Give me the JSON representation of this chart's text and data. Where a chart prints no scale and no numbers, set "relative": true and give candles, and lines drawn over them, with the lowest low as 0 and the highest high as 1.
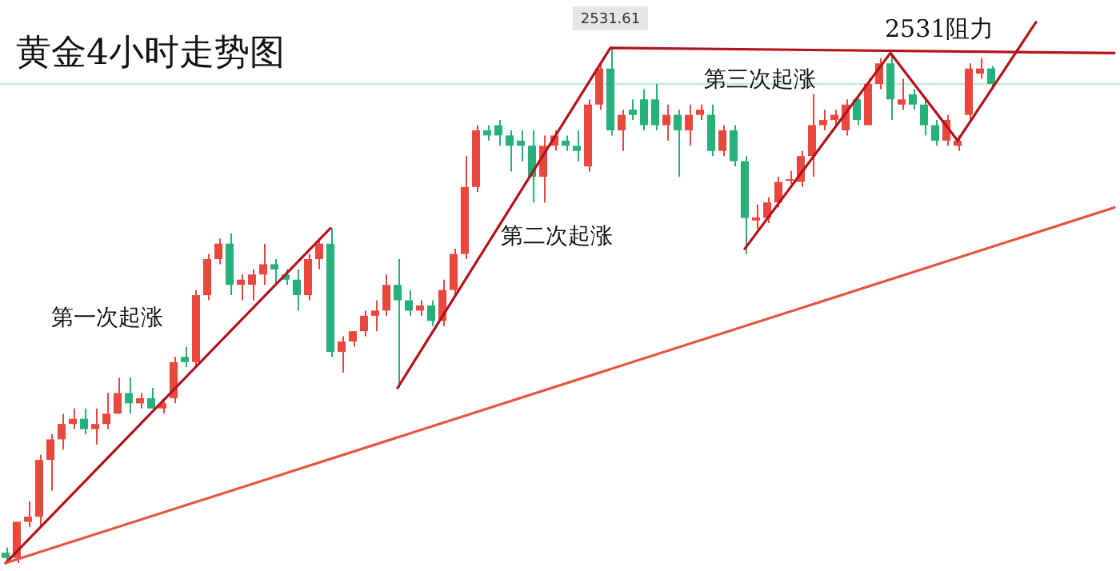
{
  "chart_data": {
    "type": "candlestick",
    "title": "黄金4小时走势图",
    "relative": true,
    "categories": [
      null,
      null,
      null,
      null,
      null,
      null,
      null,
      null,
      null,
      null,
      null,
      null,
      null,
      null,
      null,
      null,
      null,
      null,
      null,
      null,
      null,
      null,
      null,
      null,
      null,
      null,
      null,
      null,
      null,
      null,
      null,
      null,
      null,
      null,
      null,
      null,
      null,
      null,
      null,
      null,
      null,
      null,
      null,
      null,
      null,
      null,
      null,
      null,
      null,
      null,
      null,
      null,
      null,
      null,
      null,
      null,
      null,
      null,
      null,
      null,
      null,
      null,
      null,
      null,
      null,
      null,
      null,
      null,
      null,
      null,
      null,
      null,
      null,
      null,
      null,
      null,
      null,
      null,
      null,
      null,
      null,
      null,
      null,
      null,
      null,
      null,
      null,
      null,
      null,
      null,
      null,
      null,
      null,
      null,
      null,
      null,
      null,
      null,
      null,
      null
    ],
    "ohlc": [
      [
        0.02,
        0.03,
        0,
        0.01
      ],
      [
        0.01,
        0.08,
        0,
        0.08
      ],
      [
        0.08,
        0.12,
        0.07,
        0.09
      ],
      [
        0.09,
        0.21,
        0.07,
        0.2
      ],
      [
        0.2,
        0.25,
        0.14,
        0.24
      ],
      [
        0.24,
        0.29,
        0.22,
        0.27
      ],
      [
        0.27,
        0.3,
        0.26,
        0.28
      ],
      [
        0.28,
        0.3,
        0.25,
        0.26
      ],
      [
        0.26,
        0.3,
        0.23,
        0.27
      ],
      [
        0.27,
        0.33,
        0.26,
        0.29
      ],
      [
        0.29,
        0.36,
        0.29,
        0.33
      ],
      [
        0.33,
        0.36,
        0.29,
        0.31
      ],
      [
        0.31,
        0.33,
        0.3,
        0.32
      ],
      [
        0.32,
        0.34,
        0.3,
        0.3
      ],
      [
        0.3,
        0.32,
        0.29,
        0.31
      ],
      [
        0.32,
        0.4,
        0.31,
        0.39
      ],
      [
        0.4,
        0.42,
        0.38,
        0.39
      ],
      [
        0.39,
        0.53,
        0.38,
        0.52
      ],
      [
        0.52,
        0.6,
        0.51,
        0.59
      ],
      [
        0.59,
        0.63,
        0.58,
        0.62
      ],
      [
        0.62,
        0.64,
        0.52,
        0.54
      ],
      [
        0.54,
        0.56,
        0.51,
        0.55
      ],
      [
        0.54,
        0.57,
        0.51,
        0.56
      ],
      [
        0.56,
        0.62,
        0.54,
        0.58
      ],
      [
        0.58,
        0.59,
        0.54,
        0.57
      ],
      [
        0.56,
        0.57,
        0.54,
        0.55
      ],
      [
        0.55,
        0.57,
        0.49,
        0.52
      ],
      [
        0.52,
        0.6,
        0.51,
        0.59
      ],
      [
        0.59,
        0.63,
        0.57,
        0.62
      ],
      [
        0.62,
        0.65,
        0.4,
        0.41
      ],
      [
        0.41,
        0.44,
        0.37,
        0.43
      ],
      [
        0.43,
        0.45,
        0.42,
        0.45
      ],
      [
        0.45,
        0.49,
        0.44,
        0.48
      ],
      [
        0.48,
        0.51,
        0.45,
        0.49
      ],
      [
        0.49,
        0.56,
        0.48,
        0.54
      ],
      [
        0.54,
        0.59,
        0.34,
        0.51
      ],
      [
        0.51,
        0.53,
        0.48,
        0.49
      ],
      [
        0.49,
        0.51,
        0.48,
        0.5
      ],
      [
        0.5,
        0.51,
        0.46,
        0.47
      ],
      [
        0.47,
        0.55,
        0.46,
        0.53
      ],
      [
        0.53,
        0.61,
        0.52,
        0.6
      ],
      [
        0.6,
        0.79,
        0.59,
        0.73
      ],
      [
        0.73,
        0.85,
        0.72,
        0.84
      ],
      [
        0.84,
        0.85,
        0.82,
        0.83
      ],
      [
        0.85,
        0.86,
        0.81,
        0.83
      ],
      [
        0.83,
        0.84,
        0.76,
        0.81
      ],
      [
        0.82,
        0.84,
        0.78,
        0.81
      ],
      [
        0.81,
        0.84,
        0.7,
        0.75
      ],
      [
        0.75,
        0.83,
        0.7,
        0.81
      ],
      [
        0.81,
        0.84,
        0.8,
        0.83
      ],
      [
        0.82,
        0.83,
        0.8,
        0.81
      ],
      [
        0.81,
        0.84,
        0.78,
        0.8
      ],
      [
        0.77,
        0.9,
        0.76,
        0.89
      ],
      [
        0.89,
        0.97,
        0.88,
        0.96
      ],
      [
        0.96,
        1,
        0.83,
        0.84
      ],
      [
        0.84,
        0.88,
        0.8,
        0.87
      ],
      [
        0.88,
        0.9,
        0.86,
        0.87
      ],
      [
        0.9,
        0.92,
        0.84,
        0.85
      ],
      [
        0.9,
        0.93,
        0.84,
        0.85
      ],
      [
        0.85,
        0.89,
        0.82,
        0.87
      ],
      [
        0.87,
        0.88,
        0.75,
        0.84
      ],
      [
        0.84,
        0.89,
        0.81,
        0.87
      ],
      [
        0.87,
        0.89,
        0.86,
        0.88
      ],
      [
        0.87,
        0.89,
        0.79,
        0.8
      ],
      [
        0.8,
        0.85,
        0.79,
        0.84
      ],
      [
        0.84,
        0.85,
        0.77,
        0.78
      ],
      [
        0.78,
        0.79,
        0.6,
        0.67
      ],
      [
        0.665,
        0.696,
        0.649,
        0.671
      ],
      [
        0.67,
        0.71,
        0.66,
        0.7
      ],
      [
        0.7,
        0.75,
        0.69,
        0.74
      ],
      [
        0.742,
        0.761,
        0.736,
        0.745
      ],
      [
        0.74,
        0.8,
        0.73,
        0.79
      ],
      [
        0.79,
        0.91,
        0.75,
        0.85
      ],
      [
        0.85,
        0.88,
        0.84,
        0.86
      ],
      [
        0.86,
        0.88,
        0.85,
        0.87
      ],
      [
        0.84,
        0.9,
        0.83,
        0.89
      ],
      [
        0.9,
        0.91,
        0.85,
        0.86
      ],
      [
        0.85,
        0.94,
        0.85,
        0.93
      ],
      [
        0.93,
        0.98,
        0.92,
        0.97
      ],
      [
        0.97,
        0.99,
        0.86,
        0.9
      ],
      [
        0.89,
        0.94,
        0.88,
        0.9
      ],
      [
        0.91,
        0.92,
        0.88,
        0.89
      ],
      [
        0.89,
        0.9,
        0.83,
        0.85
      ],
      [
        0.85,
        0.86,
        0.81,
        0.82
      ],
      [
        0.82,
        0.87,
        0.81,
        0.86
      ],
      [
        0.81,
        0.83,
        0.8,
        0.82
      ],
      [
        0.87,
        0.97,
        0.86,
        0.96
      ],
      [
        0.95,
        0.98,
        0.94,
        0.96
      ],
      [
        0.96,
        0.965,
        0.92,
        0.93
      ],
      null,
      null,
      null,
      null,
      null,
      null,
      null,
      null,
      null,
      null,
      null
    ],
    "colors": [
      "#26b17a",
      "#e9483f",
      "#e9483f",
      "#e9483f",
      "#e9483f",
      "#e9483f",
      "#e9483f",
      "#26b17a",
      "#e9483f",
      "#e9483f",
      "#e9483f",
      "#26b17a",
      "#e9483f",
      "#26b17a",
      "#e9483f",
      "#e9483f",
      "#26b17a",
      "#e9483f",
      "#e9483f",
      "#e9483f",
      "#26b17a",
      "#e9483f",
      "#e9483f",
      "#e9483f",
      "#26b17a",
      "#26b17a",
      "#26b17a",
      "#e9483f",
      "#e9483f",
      "#26b17a",
      "#e9483f",
      "#e9483f",
      "#e9483f",
      "#e9483f",
      "#e9483f",
      "#26b17a",
      "#26b17a",
      "#e9483f",
      "#26b17a",
      "#e9483f",
      "#e9483f",
      "#e9483f",
      "#e9483f",
      "#26b17a",
      "#26b17a",
      "#26b17a",
      "#26b17a",
      "#26b17a",
      "#e9483f",
      "#e9483f",
      "#26b17a",
      "#26b17a",
      "#e9483f",
      "#e9483f",
      "#26b17a",
      "#e9483f",
      "#26b17a",
      "#26b17a",
      "#26b17a",
      "#e9483f",
      "#26b17a",
      "#e9483f",
      "#e9483f",
      "#26b17a",
      "#e9483f",
      "#26b17a",
      "#26b17a",
      "#e9483f",
      "#e9483f",
      "#e9483f",
      "#e9483f",
      "#e9483f",
      "#e9483f",
      "#e9483f",
      "#e9483f",
      "#e9483f",
      "#26b17a",
      "#e9483f",
      "#e9483f",
      "#26b17a",
      "#e9483f",
      "#26b17a",
      "#26b17a",
      "#26b17a",
      "#e9483f",
      "#e9483f",
      "#e9483f",
      "#e9483f",
      "#26b17a",
      null,
      null,
      null,
      null,
      null,
      null,
      null,
      null,
      null,
      null,
      null
    ],
    "series": [
      {
        "type": "line",
        "color": "#e8553f",
        "values": [
          0,
          null,
          null,
          null,
          null,
          null,
          null,
          null,
          null,
          null,
          null,
          null,
          null,
          null,
          null,
          null,
          null,
          null,
          null,
          null,
          null,
          null,
          null,
          null,
          null,
          null,
          null,
          null,
          null,
          null,
          null,
          null,
          null,
          null,
          null,
          null,
          null,
          null,
          null,
          null,
          null,
          null,
          null,
          null,
          null,
          null,
          null,
          null,
          null,
          null,
          null,
          null,
          null,
          null,
          null,
          null,
          null,
          null,
          null,
          null,
          null,
          null,
          null,
          null,
          null,
          null,
          null,
          null,
          null,
          null,
          null,
          null,
          null,
          null,
          null,
          null,
          null,
          null,
          null,
          null,
          null,
          null,
          null,
          null,
          null,
          null,
          null,
          null,
          null,
          null,
          null,
          null,
          null,
          null,
          null,
          null,
          null,
          null,
          null,
          0.69
        ]
      },
      {
        "type": "line",
        "color": "#b5121b",
        "values": [
          0,
          null,
          null,
          null,
          null,
          null,
          null,
          null,
          null,
          null,
          null,
          null,
          null,
          null,
          null,
          null,
          null,
          null,
          null,
          null,
          null,
          null,
          null,
          null,
          null,
          null,
          null,
          null,
          null,
          0.65,
          null,
          null,
          null,
          null,
          null,
          null,
          null,
          null,
          null,
          null,
          null,
          null,
          null,
          null,
          null,
          null,
          null,
          null,
          null,
          null,
          null,
          null,
          null,
          null,
          null,
          null,
          null,
          null,
          null,
          null,
          null,
          null,
          null,
          null,
          null,
          null,
          null,
          null,
          null,
          null,
          null,
          null,
          null,
          null,
          null,
          null,
          null,
          null,
          null,
          null,
          null,
          null,
          null,
          null,
          null,
          null,
          null,
          null,
          null,
          null,
          null,
          null,
          null,
          null,
          null,
          null,
          null,
          null,
          null,
          null
        ]
      },
      {
        "type": "line",
        "color": "#b5121b",
        "values": [
          null,
          null,
          null,
          null,
          null,
          null,
          null,
          null,
          null,
          null,
          null,
          null,
          null,
          null,
          null,
          null,
          null,
          null,
          null,
          null,
          null,
          null,
          null,
          null,
          null,
          null,
          null,
          null,
          null,
          null,
          null,
          null,
          null,
          null,
          null,
          0.34,
          null,
          null,
          null,
          null,
          null,
          null,
          null,
          null,
          null,
          null,
          null,
          null,
          null,
          null,
          null,
          null,
          null,
          null,
          1,
          null,
          null,
          null,
          null,
          null,
          null,
          null,
          null,
          null,
          null,
          null,
          null,
          null,
          null,
          null,
          null,
          null,
          null,
          null,
          null,
          null,
          null,
          null,
          null,
          null,
          null,
          null,
          null,
          null,
          null,
          null,
          null,
          null,
          null,
          null,
          null,
          null,
          null,
          null,
          null,
          null,
          null,
          null,
          null,
          0.99
        ]
      },
      {
        "type": "line",
        "color": "#b5121b",
        "values": [
          null,
          null,
          null,
          null,
          null,
          null,
          null,
          null,
          null,
          null,
          null,
          null,
          null,
          null,
          null,
          null,
          null,
          null,
          null,
          null,
          null,
          null,
          null,
          null,
          null,
          null,
          null,
          null,
          null,
          null,
          null,
          null,
          null,
          null,
          null,
          null,
          null,
          null,
          null,
          null,
          null,
          null,
          null,
          null,
          null,
          null,
          null,
          null,
          null,
          null,
          null,
          null,
          null,
          null,
          null,
          null,
          null,
          null,
          null,
          null,
          null,
          null,
          null,
          null,
          null,
          null,
          0.61,
          null,
          null,
          null,
          null,
          null,
          null,
          null,
          null,
          null,
          null,
          null,
          null,
          0.99,
          null,
          null,
          null,
          null,
          null,
          0.82,
          null,
          null,
          null,
          null,
          null,
          null,
          1.05,
          null,
          null,
          null,
          null,
          null,
          null,
          null
        ]
      }
    ],
    "ref_lines": [
      {
        "axis": "y",
        "value": 0.93,
        "color": "#c4eadb"
      }
    ],
    "annotations": [
      "第一次起涨",
      "第二次起涨",
      "第三次起涨",
      "2531阻力",
      "2531.61"
    ]
  }
}
